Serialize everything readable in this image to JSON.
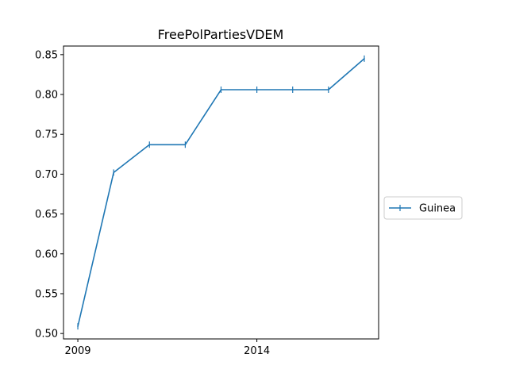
{
  "chart_data": {
    "type": "line",
    "title": "FreePolPartiesVDEM",
    "xlabel": "",
    "ylabel": "",
    "x": [
      2009,
      2010,
      2011,
      2012,
      2013,
      2014,
      2015,
      2016,
      2017
    ],
    "series": [
      {
        "name": "Guinea",
        "color": "#1f77b4",
        "marker": "vertical-tick",
        "values": [
          0.509,
          0.702,
          0.737,
          0.737,
          0.806,
          0.806,
          0.806,
          0.806,
          0.845
        ]
      }
    ],
    "xlim": [
      2008.6,
      2017.4
    ],
    "ylim": [
      0.4932,
      0.8608
    ],
    "x_ticks": [
      2009,
      2014
    ],
    "x_tick_labels": [
      "2009",
      "2014"
    ],
    "y_ticks": [
      0.5,
      0.55,
      0.6,
      0.65,
      0.7,
      0.75,
      0.8,
      0.85
    ],
    "y_tick_labels": [
      "0.50",
      "0.55",
      "0.60",
      "0.65",
      "0.70",
      "0.75",
      "0.80",
      "0.85"
    ],
    "grid": false,
    "legend_position": "right, outside plot"
  }
}
